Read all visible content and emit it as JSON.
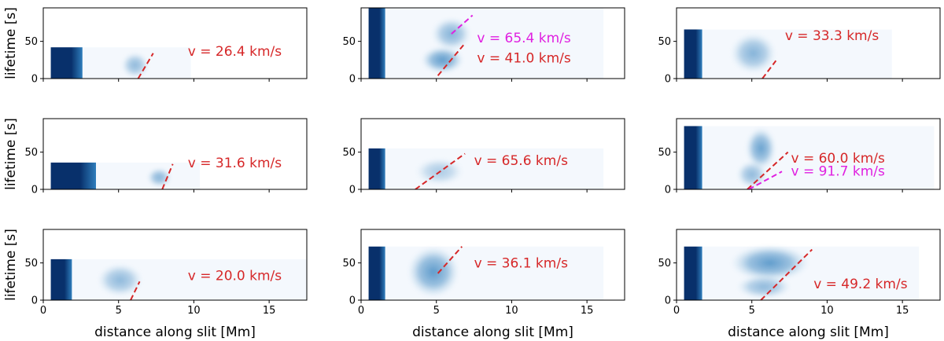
{
  "colors": {
    "red": "#d62728",
    "magenta": "#e020e0",
    "background_fill": "#f4f8fd",
    "heat_dark": "#08306b",
    "heat_mid": "#2f7ebc",
    "heat_light": "#9ecae1"
  },
  "chart_data": {
    "type": "heatmap",
    "layout": "3x3 grid",
    "xlabel": "distance along slit [Mm]",
    "ylabel": "lifetime [s]",
    "xlim": [
      0,
      17.5
    ],
    "ylim": [
      0,
      95
    ],
    "xticks": [
      "0",
      "5",
      "10",
      "15"
    ],
    "yticks": [
      "0",
      "50"
    ],
    "panels": [
      {
        "row": 0,
        "col": 0,
        "extent": {
          "x": [
            0.5,
            9.8
          ],
          "y": [
            0,
            42
          ]
        },
        "bar": {
          "x": [
            0.5,
            2.6
          ],
          "y": [
            0,
            42
          ]
        },
        "blobs": [
          {
            "x": 6.1,
            "y": 18,
            "rx": 0.9,
            "ry": 17,
            "intensity": 0.55
          }
        ],
        "fits": [
          {
            "color": "red",
            "x": [
              6.3,
              7.3
            ],
            "y": [
              0,
              34
            ]
          }
        ],
        "labels": [
          {
            "text": "v = 26.4 km/s",
            "color": "red",
            "x": 9.6,
            "y": 37
          }
        ]
      },
      {
        "row": 0,
        "col": 1,
        "extent": {
          "x": [
            0.5,
            16.1
          ],
          "y": [
            0,
            95
          ]
        },
        "bar": {
          "x": [
            0.5,
            1.6
          ],
          "y": [
            0,
            95
          ]
        },
        "blobs": [
          {
            "x": 6.0,
            "y": 60,
            "rx": 1.3,
            "ry": 22,
            "intensity": 0.6
          },
          {
            "x": 5.4,
            "y": 25,
            "rx": 1.4,
            "ry": 18,
            "intensity": 0.8
          }
        ],
        "fits": [
          {
            "color": "magenta",
            "x": [
              6.0,
              7.4
            ],
            "y": [
              60,
              85
            ]
          },
          {
            "color": "red",
            "x": [
              5.1,
              6.8
            ],
            "y": [
              4,
              45
            ]
          }
        ],
        "labels": [
          {
            "text": "v = 65.4 km/s",
            "color": "magenta",
            "x": 7.7,
            "y": 55
          },
          {
            "text": "v = 41.0 km/s",
            "color": "red",
            "x": 7.7,
            "y": 28
          }
        ]
      },
      {
        "row": 0,
        "col": 2,
        "extent": {
          "x": [
            0.5,
            14.3
          ],
          "y": [
            0,
            66
          ]
        },
        "bar": {
          "x": [
            0.5,
            1.7
          ],
          "y": [
            0,
            66
          ]
        },
        "blobs": [
          {
            "x": 5.1,
            "y": 34,
            "rx": 1.5,
            "ry": 27,
            "intensity": 0.6
          }
        ],
        "fits": [
          {
            "color": "red",
            "x": [
              5.7,
              6.6
            ],
            "y": [
              0,
              24
            ]
          }
        ],
        "labels": [
          {
            "text": "v = 33.3 km/s",
            "color": "red",
            "x": 7.2,
            "y": 58
          }
        ]
      },
      {
        "row": 1,
        "col": 0,
        "extent": {
          "x": [
            0.5,
            10.4
          ],
          "y": [
            0,
            36
          ]
        },
        "bar": {
          "x": [
            0.5,
            3.5
          ],
          "y": [
            0,
            36
          ]
        },
        "blobs": [
          {
            "x": 7.7,
            "y": 16,
            "rx": 0.8,
            "ry": 13,
            "intensity": 0.6
          }
        ],
        "fits": [
          {
            "color": "red",
            "x": [
              7.9,
              8.6
            ],
            "y": [
              0,
              34
            ]
          }
        ],
        "labels": [
          {
            "text": "v = 31.6 km/s",
            "color": "red",
            "x": 9.6,
            "y": 36
          }
        ]
      },
      {
        "row": 1,
        "col": 1,
        "extent": {
          "x": [
            0.5,
            16.1
          ],
          "y": [
            0,
            55
          ]
        },
        "bar": {
          "x": [
            0.5,
            1.6
          ],
          "y": [
            0,
            55
          ]
        },
        "blobs": [
          {
            "x": 5.2,
            "y": 24,
            "rx": 1.6,
            "ry": 18,
            "intensity": 0.4
          }
        ],
        "fits": [
          {
            "color": "red",
            "x": [
              3.6,
              6.9
            ],
            "y": [
              0,
              48
            ]
          }
        ],
        "labels": [
          {
            "text": "v = 65.6 km/s",
            "color": "red",
            "x": 7.5,
            "y": 39
          }
        ]
      },
      {
        "row": 1,
        "col": 2,
        "extent": {
          "x": [
            0.5,
            17.1
          ],
          "y": [
            0,
            85
          ]
        },
        "bar": {
          "x": [
            0.5,
            1.7
          ],
          "y": [
            0,
            85
          ]
        },
        "blobs": [
          {
            "x": 5.6,
            "y": 55,
            "rx": 1.0,
            "ry": 28,
            "intensity": 0.75
          },
          {
            "x": 5.0,
            "y": 20,
            "rx": 1.0,
            "ry": 18,
            "intensity": 0.55
          }
        ],
        "fits": [
          {
            "color": "red",
            "x": [
              4.7,
              7.4
            ],
            "y": [
              0,
              50
            ]
          },
          {
            "color": "magenta",
            "x": [
              4.8,
              7.0
            ],
            "y": [
              0,
              24
            ]
          }
        ],
        "labels": [
          {
            "text": "v = 60.0 km/s",
            "color": "red",
            "x": 7.6,
            "y": 42
          },
          {
            "text": "v = 91.7 km/s",
            "color": "magenta",
            "x": 7.6,
            "y": 25
          }
        ]
      },
      {
        "row": 2,
        "col": 0,
        "extent": {
          "x": [
            0.5,
            17.5
          ],
          "y": [
            0,
            55
          ]
        },
        "bar": {
          "x": [
            0.5,
            1.9
          ],
          "y": [
            0,
            55
          ]
        },
        "blobs": [
          {
            "x": 5.1,
            "y": 27,
            "rx": 1.5,
            "ry": 22,
            "intensity": 0.55
          }
        ],
        "fits": [
          {
            "color": "red",
            "x": [
              5.8,
              6.4
            ],
            "y": [
              0,
              25
            ]
          }
        ],
        "labels": [
          {
            "text": "v = 20.0 km/s",
            "color": "red",
            "x": 9.6,
            "y": 33
          }
        ]
      },
      {
        "row": 2,
        "col": 1,
        "extent": {
          "x": [
            0.5,
            16.1
          ],
          "y": [
            0,
            72
          ]
        },
        "bar": {
          "x": [
            0.5,
            1.6
          ],
          "y": [
            0,
            72
          ]
        },
        "blobs": [
          {
            "x": 4.8,
            "y": 38,
            "rx": 1.7,
            "ry": 34,
            "intensity": 0.8
          }
        ],
        "fits": [
          {
            "color": "red",
            "x": [
              5.1,
              6.7
            ],
            "y": [
              36,
              72
            ]
          }
        ],
        "labels": [
          {
            "text": "v = 36.1 km/s",
            "color": "red",
            "x": 7.5,
            "y": 50
          }
        ]
      },
      {
        "row": 2,
        "col": 2,
        "extent": {
          "x": [
            0.5,
            16.1
          ],
          "y": [
            0,
            72
          ]
        },
        "bar": {
          "x": [
            0.5,
            1.7
          ],
          "y": [
            0,
            72
          ]
        },
        "blobs": [
          {
            "x": 6.2,
            "y": 50,
            "rx": 2.6,
            "ry": 24,
            "intensity": 0.8
          },
          {
            "x": 5.8,
            "y": 18,
            "rx": 1.8,
            "ry": 16,
            "intensity": 0.55
          }
        ],
        "fits": [
          {
            "color": "red",
            "x": [
              5.6,
              9.0
            ],
            "y": [
              0,
              68
            ]
          }
        ],
        "labels": [
          {
            "text": "v = 49.2 km/s",
            "color": "red",
            "x": 9.1,
            "y": 22
          }
        ]
      }
    ]
  }
}
